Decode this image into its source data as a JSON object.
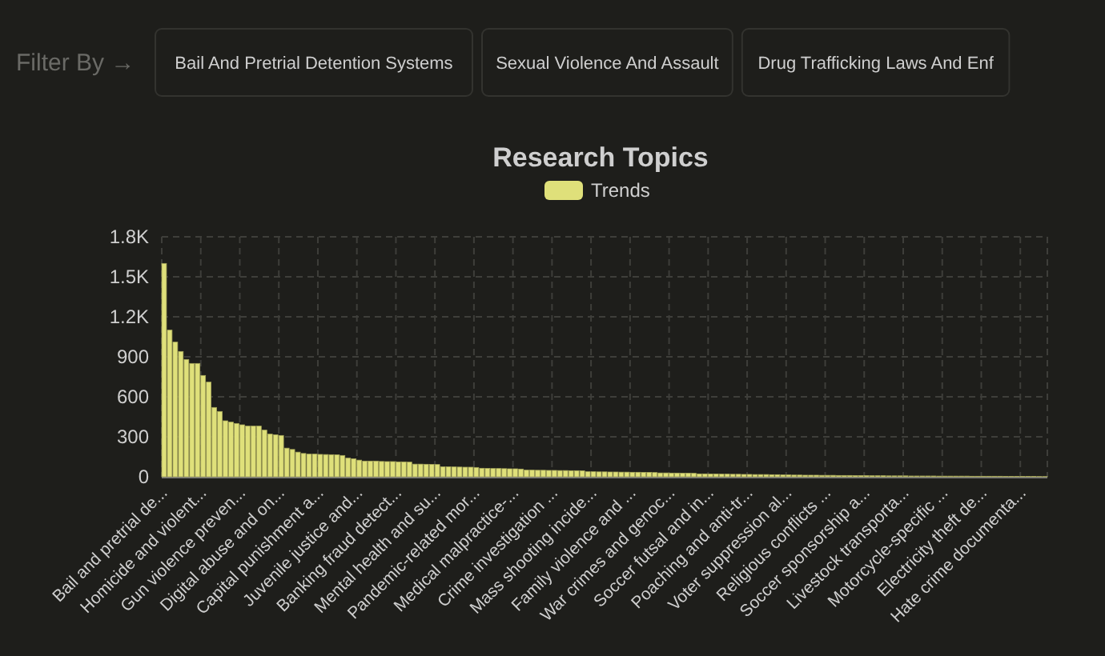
{
  "chart_data": {
    "type": "bar",
    "title": "Research Topics",
    "annotations": [
      "Filter By →",
      "Bail And Pretrial Detention Systems",
      "Sexual Violence And Assault",
      "Drug Trafficking Laws And Enf"
    ],
    "categories": [
      "Bail and pretrial de...",
      null,
      null,
      null,
      null,
      null,
      null,
      "Homicide and violent...",
      null,
      null,
      null,
      null,
      null,
      null,
      "Gun violence preven...",
      null,
      null,
      null,
      null,
      null,
      null,
      "Digital abuse and on...",
      null,
      null,
      null,
      null,
      null,
      null,
      "Capital punishment a...",
      null,
      null,
      null,
      null,
      null,
      null,
      "Juvenile justice and...",
      null,
      null,
      null,
      null,
      null,
      null,
      "Banking fraud detect...",
      null,
      null,
      null,
      null,
      null,
      null,
      "Mental health and su...",
      null,
      null,
      null,
      null,
      null,
      null,
      "Pandemic-related mor...",
      null,
      null,
      null,
      null,
      null,
      null,
      "Medical malpractice-...",
      null,
      null,
      null,
      null,
      null,
      null,
      "Crime investigation ...",
      null,
      null,
      null,
      null,
      null,
      null,
      "Mass shooting incide...",
      null,
      null,
      null,
      null,
      null,
      null,
      "Family violence and ...",
      null,
      null,
      null,
      null,
      null,
      null,
      "War crimes and genoc...",
      null,
      null,
      null,
      null,
      null,
      null,
      "Soccer futsal and in...",
      null,
      null,
      null,
      null,
      null,
      null,
      "Poaching and anti-tr...",
      null,
      null,
      null,
      null,
      null,
      null,
      "Voter suppression al...",
      null,
      null,
      null,
      null,
      null,
      null,
      "Religious conflicts ...",
      null,
      null,
      null,
      null,
      null,
      null,
      "Soccer sponsorship a...",
      null,
      null,
      null,
      null,
      null,
      null,
      "Livestock transporta...",
      null,
      null,
      null,
      null,
      null,
      null,
      "Motorcycle-specific ...",
      null,
      null,
      null,
      null,
      null,
      null,
      "Electricity theft de...",
      null,
      null,
      null,
      null,
      null,
      null,
      "Hate crime documenta...",
      null,
      null,
      null,
      null
    ],
    "series": [
      {
        "name": "Trends",
        "color": "#dfe07a",
        "values": [
          1600,
          1100,
          1010,
          940,
          880,
          850,
          850,
          760,
          710,
          520,
          490,
          420,
          410,
          400,
          390,
          380,
          380,
          380,
          350,
          320,
          315,
          310,
          215,
          205,
          185,
          175,
          170,
          170,
          168,
          167,
          166,
          165,
          160,
          140,
          135,
          125,
          118,
          118,
          118,
          115,
          114,
          114,
          112,
          112,
          110,
          95,
          95,
          94,
          93,
          92,
          75,
          75,
          74,
          73,
          72,
          72,
          70,
          64,
          63,
          62,
          62,
          61,
          60,
          60,
          58,
          50,
          50,
          49,
          49,
          48,
          48,
          47,
          47,
          46,
          46,
          45,
          38,
          38,
          37,
          37,
          36,
          36,
          35,
          35,
          34,
          34,
          33,
          33,
          32,
          29,
          29,
          28,
          28,
          27,
          27,
          26,
          22,
          22,
          21,
          21,
          20,
          20,
          19,
          19,
          18,
          18,
          17,
          17,
          17,
          16,
          16,
          14,
          14,
          13,
          13,
          12,
          12,
          12,
          11,
          11,
          11,
          10,
          10,
          10,
          9,
          9,
          9,
          8,
          8,
          8,
          7,
          7,
          7,
          7,
          6,
          6,
          6,
          6,
          6,
          5,
          5,
          5,
          5,
          5,
          5,
          4,
          4,
          4,
          4,
          4,
          4,
          3,
          3,
          3,
          3,
          3,
          3,
          2,
          2
        ]
      }
    ],
    "ylim": [
      0,
      1800
    ],
    "yticks": [
      0,
      300,
      600,
      900,
      {
        "value": 1200,
        "label": "1.2K"
      },
      {
        "value": 1500,
        "label": "1.5K"
      },
      {
        "value": 1800,
        "label": "1.8K"
      }
    ],
    "grid": true,
    "legend": "top"
  }
}
